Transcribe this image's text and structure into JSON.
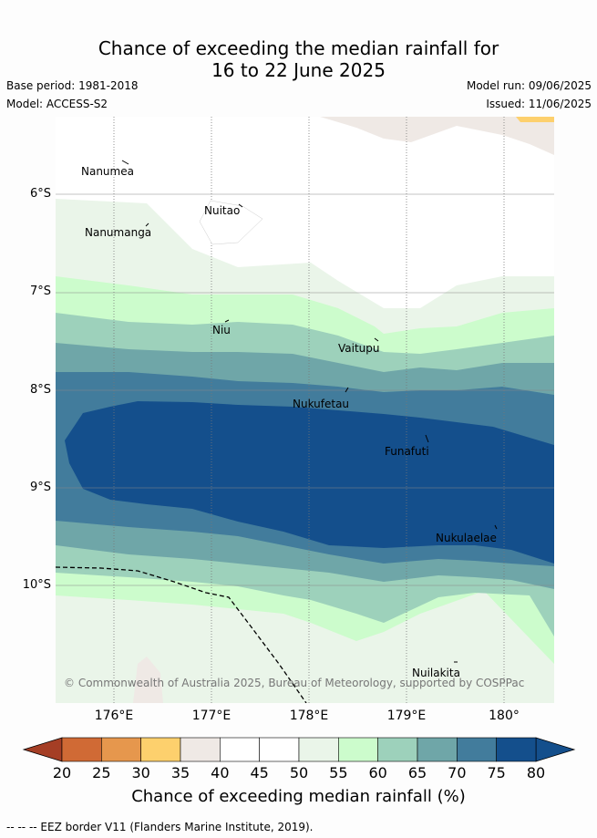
{
  "title": {
    "line1": "Chance of exceeding the median rainfall for",
    "line2": "16 to 22 June 2025"
  },
  "meta": {
    "base_period": "Base period: 1981-2018",
    "model": "Model: ACCESS-S2",
    "model_run": "Model run: 09/06/2025",
    "issued": "Issued: 11/06/2025"
  },
  "lat_labels": [
    "6°S",
    "7°S",
    "8°S",
    "9°S",
    "10°S"
  ],
  "lon_labels": [
    "176°E",
    "177°E",
    "178°E",
    "179°E",
    "180°"
  ],
  "places": [
    "Nanumea",
    "Nuitao",
    "Nanumanga",
    "Niu",
    "Vaitupu",
    "Nukufetau",
    "Funafuti",
    "Nukulaelae",
    "Nuilakita"
  ],
  "copyright": "© Commonwealth of Australia 2025, Bureau of Meteorology, supported by COSPPac",
  "colorbar": {
    "ticks": [
      "20",
      "25",
      "30",
      "35",
      "40",
      "45",
      "50",
      "55",
      "60",
      "65",
      "70",
      "75",
      "80"
    ],
    "label": "Chance of exceeding median rainfall (%)",
    "colors": [
      "#b5492a",
      "#d06a35",
      "#e6974d",
      "#fdd06d",
      "#efe9e5",
      "#ffffff",
      "#ffffff",
      "#eaf5e9",
      "#ccfccc",
      "#9dd1bb",
      "#6fa6a8",
      "#427c9c",
      "#144f8c"
    ],
    "under_color": "#a53e25",
    "over_color": "#144f8c"
  },
  "footer": "--  --  -- EEZ border V11 (Flanders Marine Institute, 2019)."
}
